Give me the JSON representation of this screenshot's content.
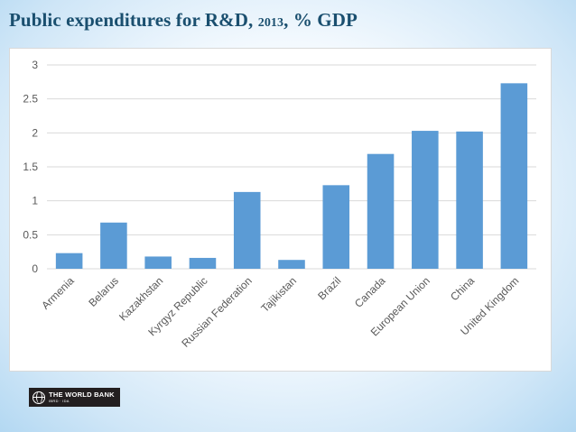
{
  "slide": {
    "title_main": "Public expenditures for R&D,",
    "title_year": "2013",
    "title_unit": ", % GDP"
  },
  "logo": {
    "name": "THE WORLD BANK",
    "sub": "IBRD · IDA"
  },
  "colors": {
    "bar": "#5b9bd5",
    "title": "#1a4f6f",
    "grid": "#d9d9d9",
    "axis_text": "#595959"
  },
  "chart_data": {
    "type": "bar",
    "title": "",
    "xlabel": "",
    "ylabel": "",
    "ylim": [
      0,
      3
    ],
    "yticks": [
      0,
      0.5,
      1,
      1.5,
      2,
      2.5,
      3
    ],
    "ytick_labels": [
      "0",
      "0.5",
      "1",
      "1.5",
      "2",
      "2.5",
      "3"
    ],
    "grid": true,
    "legend": false,
    "categories": [
      "Armenia",
      "Belarus",
      "Kazakhstan",
      "Kyrgyz Republic",
      "Russian Federation",
      "Tajikistan",
      "Brazil",
      "Canada",
      "European Union",
      "China",
      "United Kingdom"
    ],
    "values": [
      0.23,
      0.68,
      0.18,
      0.16,
      1.13,
      0.13,
      1.23,
      1.69,
      2.03,
      2.02,
      2.73
    ]
  }
}
